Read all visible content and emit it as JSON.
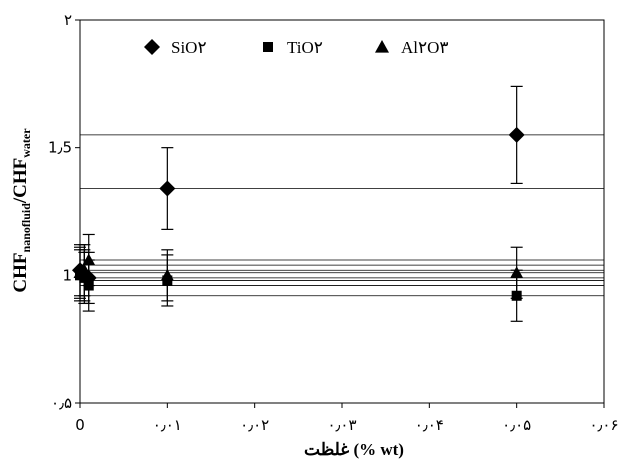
{
  "chart_data": {
    "type": "scatter",
    "title": "",
    "xlabel": "غلظت (% wt)",
    "ylabel": {
      "main1": "CHF",
      "sub1": "nanofluid",
      "sep": "/CHF",
      "sub2": "water"
    },
    "xlim": [
      0,
      0.06
    ],
    "ylim": [
      0.5,
      2
    ],
    "x_ticks": [
      {
        "value": 0,
        "label": "0"
      },
      {
        "value": 0.01,
        "label": "۰٫۰۱"
      },
      {
        "value": 0.02,
        "label": "۰٫۰۲"
      },
      {
        "value": 0.03,
        "label": "۰٫۰۳"
      },
      {
        "value": 0.04,
        "label": "۰٫۰۴"
      },
      {
        "value": 0.05,
        "label": "۰٫۰۵"
      },
      {
        "value": 0.06,
        "label": "۰٫۰۶"
      }
    ],
    "y_ticks": [
      {
        "value": 0.5,
        "label": "۰٫۵"
      },
      {
        "value": 1,
        "label": "1"
      },
      {
        "value": 1.5,
        "label": "1٫5"
      },
      {
        "value": 2,
        "label": "۲"
      }
    ],
    "horizontal_lines": [
      1.55,
      1.34,
      1.06,
      1.04,
      1.02,
      1.01,
      0.99,
      0.98,
      0.96,
      0.92
    ],
    "legend": {
      "placement": "top"
    },
    "series": [
      {
        "name": "SiO۲",
        "marker": "diamond",
        "points": [
          {
            "x": 0,
            "y": 1.02,
            "err": 0.1
          },
          {
            "x": 0.0005,
            "y": 1.0,
            "err": 0.1
          },
          {
            "x": 0.001,
            "y": 0.99,
            "err": 0.1
          },
          {
            "x": 0.01,
            "y": 1.34,
            "err": 0.16
          },
          {
            "x": 0.05,
            "y": 1.55,
            "err": 0.19
          }
        ]
      },
      {
        "name": "TiO۲",
        "marker": "square",
        "points": [
          {
            "x": 0,
            "y": 1.0,
            "err": 0.1
          },
          {
            "x": 0.0005,
            "y": 0.99,
            "err": 0.1
          },
          {
            "x": 0.001,
            "y": 0.96,
            "err": 0.1
          },
          {
            "x": 0.01,
            "y": 0.98,
            "err": 0.1
          },
          {
            "x": 0.05,
            "y": 0.92,
            "err": 0.1
          }
        ]
      },
      {
        "name": "Al۲O۳",
        "marker": "triangle",
        "points": [
          {
            "x": 0,
            "y": 1.01,
            "err": 0.1
          },
          {
            "x": 0.0005,
            "y": 1.02,
            "err": 0.1
          },
          {
            "x": 0.001,
            "y": 1.06,
            "err": 0.1
          },
          {
            "x": 0.01,
            "y": 1.0,
            "err": 0.1
          },
          {
            "x": 0.05,
            "y": 1.01,
            "err": 0.1
          }
        ]
      }
    ]
  }
}
